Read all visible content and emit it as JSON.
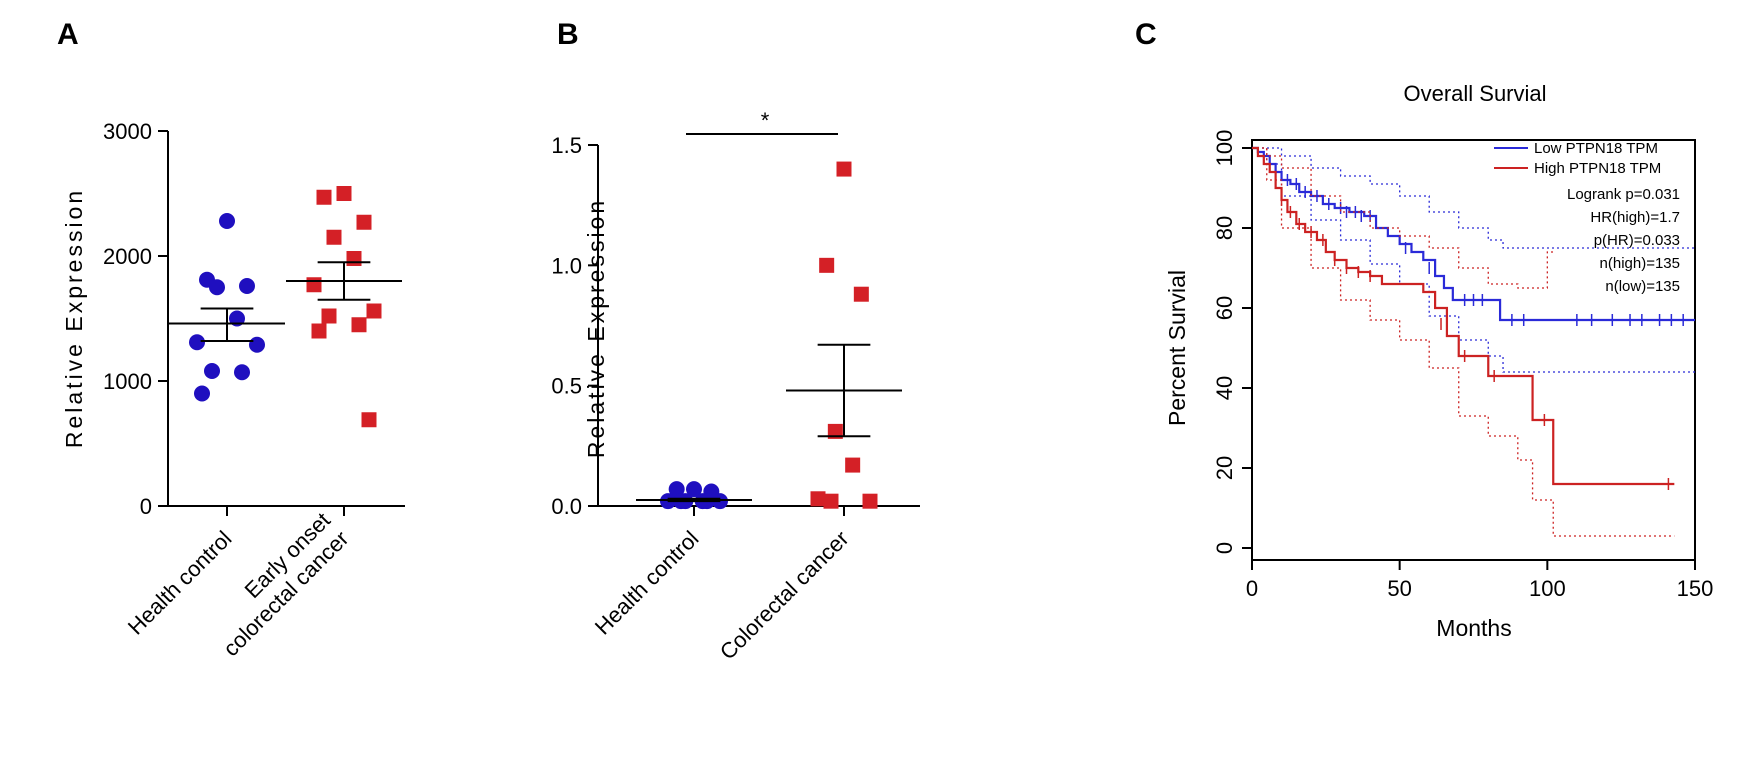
{
  "colors": {
    "blue": "#1f0fbf",
    "red": "#d42026",
    "km_blue": "#2a2ad8",
    "km_red": "#cc2222",
    "axis": "#000000"
  },
  "chart_data": [
    {
      "panel": "A",
      "type": "scatter",
      "ylabel": "Relative Expression",
      "ylim": [
        0,
        3000
      ],
      "yticks": [
        "0",
        "1000",
        "2000",
        "3000"
      ],
      "categories": [
        "Health control",
        "Early onset\ncolorectal cancer"
      ],
      "series": [
        {
          "category_index": 0,
          "marker": "circle",
          "color": "#1f0fbf",
          "values": [
            2280,
            1810,
            1760,
            1750,
            1500,
            1310,
            1290,
            1080,
            1070,
            900
          ],
          "mean": 1460,
          "sem_low": 1320,
          "sem_high": 1580
        },
        {
          "category_index": 1,
          "marker": "square",
          "color": "#d42026",
          "values": [
            2500,
            2470,
            2270,
            2150,
            1980,
            1770,
            1560,
            1520,
            1450,
            1400,
            690
          ],
          "mean": 1800,
          "sem_low": 1650,
          "sem_high": 1950
        }
      ]
    },
    {
      "panel": "B",
      "type": "scatter",
      "ylabel": "Relative Expression",
      "ylim": [
        0,
        1.5
      ],
      "yticks": [
        "0.0",
        "0.5",
        "1.0",
        "1.5"
      ],
      "categories": [
        "Health control",
        "Colorectal cancer"
      ],
      "significance": "*",
      "series": [
        {
          "category_index": 0,
          "marker": "circle",
          "color": "#1f0fbf",
          "values": [
            0.07,
            0.07,
            0.06,
            0.02,
            0.02,
            0.02,
            0.02,
            0.02,
            0.02
          ],
          "mean": 0.025,
          "sem_low": 0.02,
          "sem_high": 0.03
        },
        {
          "category_index": 1,
          "marker": "square",
          "color": "#d42026",
          "values": [
            1.4,
            1.0,
            0.88,
            0.31,
            0.17,
            0.03,
            0.02,
            0.02
          ],
          "mean": 0.48,
          "sem_low": 0.29,
          "sem_high": 0.67
        }
      ]
    },
    {
      "panel": "C",
      "type": "line",
      "title": "Overall Survial",
      "xlabel": "Months",
      "ylabel": "Percent Survial",
      "xlim": [
        0,
        150
      ],
      "ylim": [
        0,
        100
      ],
      "xticks": [
        "0",
        "50",
        "100",
        "150"
      ],
      "yticks": [
        "0",
        "20",
        "40",
        "60",
        "80",
        "100"
      ],
      "legend_position": "top-right",
      "stats": [
        "Logrank p=0.031",
        "HR(high)=1.7",
        "p(HR)=0.033",
        "n(high)=135",
        "n(low)=135"
      ],
      "series": [
        {
          "name": "Low PTPN18 TPM",
          "color": "#2a2ad8",
          "steps": [
            [
              0,
              100
            ],
            [
              2,
              99
            ],
            [
              4,
              98
            ],
            [
              6,
              96
            ],
            [
              8,
              94
            ],
            [
              10,
              92
            ],
            [
              13,
              91
            ],
            [
              16,
              89
            ],
            [
              20,
              88
            ],
            [
              24,
              86
            ],
            [
              28,
              85
            ],
            [
              33,
              84
            ],
            [
              38,
              83
            ],
            [
              42,
              80
            ],
            [
              46,
              78
            ],
            [
              50,
              76
            ],
            [
              54,
              74
            ],
            [
              58,
              72
            ],
            [
              62,
              68
            ],
            [
              65,
              65
            ],
            [
              68,
              62
            ],
            [
              75,
              62
            ],
            [
              80,
              62
            ],
            [
              84,
              57
            ],
            [
              150,
              57
            ]
          ],
          "ci_upper": [
            [
              0,
              100
            ],
            [
              5,
              100
            ],
            [
              10,
              98
            ],
            [
              20,
              95
            ],
            [
              30,
              93
            ],
            [
              40,
              91
            ],
            [
              50,
              88
            ],
            [
              60,
              84
            ],
            [
              70,
              80
            ],
            [
              80,
              77
            ],
            [
              85,
              75
            ],
            [
              150,
              75
            ]
          ],
          "ci_lower": [
            [
              0,
              100
            ],
            [
              5,
              96
            ],
            [
              10,
              88
            ],
            [
              20,
              82
            ],
            [
              30,
              77
            ],
            [
              40,
              71
            ],
            [
              50,
              66
            ],
            [
              60,
              58
            ],
            [
              70,
              52
            ],
            [
              80,
              48
            ],
            [
              85,
              44
            ],
            [
              150,
              44
            ]
          ],
          "censor_ticks": [
            [
              8,
              94
            ],
            [
              12,
              92
            ],
            [
              15,
              91
            ],
            [
              18,
              89
            ],
            [
              22,
              88
            ],
            [
              26,
              86
            ],
            [
              30,
              85
            ],
            [
              32,
              84
            ],
            [
              35,
              84
            ],
            [
              37,
              83
            ],
            [
              40,
              83
            ],
            [
              52,
              75
            ],
            [
              60,
              70
            ],
            [
              72,
              62
            ],
            [
              75,
              62
            ],
            [
              78,
              62
            ],
            [
              88,
              57
            ],
            [
              92,
              57
            ],
            [
              110,
              57
            ],
            [
              115,
              57
            ],
            [
              122,
              57
            ],
            [
              128,
              57
            ],
            [
              132,
              57
            ],
            [
              138,
              57
            ],
            [
              142,
              57
            ],
            [
              146,
              57
            ]
          ]
        },
        {
          "name": "High PTPN18 TPM",
          "color": "#cc2222",
          "steps": [
            [
              0,
              100
            ],
            [
              2,
              98
            ],
            [
              4,
              96
            ],
            [
              6,
              94
            ],
            [
              8,
              90
            ],
            [
              10,
              87
            ],
            [
              12,
              84
            ],
            [
              15,
              81
            ],
            [
              18,
              79
            ],
            [
              22,
              77
            ],
            [
              25,
              74
            ],
            [
              28,
              72
            ],
            [
              32,
              70
            ],
            [
              36,
              69
            ],
            [
              40,
              68
            ],
            [
              44,
              66
            ],
            [
              48,
              66
            ],
            [
              54,
              66
            ],
            [
              58,
              64
            ],
            [
              62,
              60
            ],
            [
              66,
              53
            ],
            [
              70,
              48
            ],
            [
              78,
              48
            ],
            [
              80,
              43
            ],
            [
              92,
              43
            ],
            [
              95,
              32
            ],
            [
              100,
              32
            ],
            [
              102,
              16
            ],
            [
              143,
              16
            ]
          ],
          "ci_upper": [
            [
              0,
              100
            ],
            [
              5,
              98
            ],
            [
              10,
              95
            ],
            [
              20,
              88
            ],
            [
              30,
              84
            ],
            [
              40,
              80
            ],
            [
              50,
              78
            ],
            [
              60,
              75
            ],
            [
              70,
              70
            ],
            [
              80,
              66
            ],
            [
              90,
              65
            ],
            [
              100,
              74
            ],
            [
              102,
              74
            ]
          ],
          "ci_lower": [
            [
              0,
              100
            ],
            [
              5,
              92
            ],
            [
              10,
              80
            ],
            [
              20,
              70
            ],
            [
              30,
              62
            ],
            [
              40,
              57
            ],
            [
              50,
              52
            ],
            [
              60,
              45
            ],
            [
              70,
              33
            ],
            [
              80,
              28
            ],
            [
              90,
              22
            ],
            [
              95,
              12
            ],
            [
              102,
              3
            ],
            [
              143,
              3
            ]
          ],
          "censor_ticks": [
            [
              10,
              87
            ],
            [
              13,
              84
            ],
            [
              16,
              81
            ],
            [
              20,
              79
            ],
            [
              24,
              77
            ],
            [
              28,
              72
            ],
            [
              32,
              70
            ],
            [
              36,
              69
            ],
            [
              40,
              68
            ],
            [
              64,
              56
            ],
            [
              72,
              48
            ],
            [
              82,
              43
            ],
            [
              99,
              32
            ],
            [
              141,
              16
            ]
          ]
        }
      ]
    }
  ],
  "panels": {
    "a": {
      "letter": "A"
    },
    "b": {
      "letter": "B"
    },
    "c": {
      "letter": "C"
    }
  }
}
